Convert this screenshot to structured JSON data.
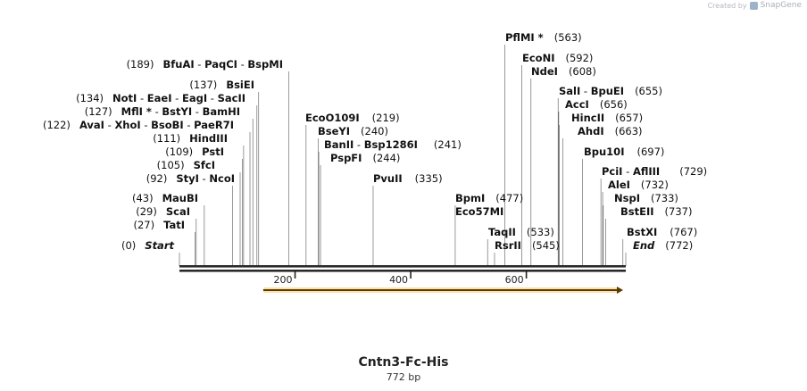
{
  "credit": {
    "prefix": "Created by",
    "brand": "SnapGene"
  },
  "sequence": {
    "name": "Cntn3-Fc-His",
    "length_label": "772 bp",
    "length": 772
  },
  "ruler": {
    "ticks": [
      200,
      400,
      600
    ]
  },
  "feature": {
    "start": 145,
    "end": 772,
    "color": "#f0a818",
    "direction": "forward"
  },
  "sites": [
    {
      "id": 0,
      "names": [
        "Start"
      ],
      "positions": [
        0
      ],
      "label": "(0)",
      "anchor": "left",
      "style": "italic"
    },
    {
      "id": 1,
      "names": [
        "TatI"
      ],
      "positions": [
        27
      ],
      "label": "(27)",
      "anchor": "left"
    },
    {
      "id": 2,
      "names": [
        "ScaI"
      ],
      "positions": [
        29
      ],
      "label": "(29)",
      "anchor": "left"
    },
    {
      "id": 3,
      "names": [
        "MauBI"
      ],
      "positions": [
        43
      ],
      "label": "(43)",
      "anchor": "left"
    },
    {
      "id": 4,
      "names": [
        "StyI",
        "NcoI"
      ],
      "positions": [
        92
      ],
      "label": "(92)",
      "anchor": "left"
    },
    {
      "id": 5,
      "names": [
        "SfcI"
      ],
      "positions": [
        105
      ],
      "label": "(105)",
      "anchor": "left"
    },
    {
      "id": 6,
      "names": [
        "PstI"
      ],
      "positions": [
        109
      ],
      "label": "(109)",
      "anchor": "left"
    },
    {
      "id": 7,
      "names": [
        "HindIII"
      ],
      "positions": [
        111
      ],
      "label": "(111)",
      "anchor": "left"
    },
    {
      "id": 8,
      "names": [
        "AvaI",
        "XhoI",
        "BsoBI",
        "PaeR7I"
      ],
      "positions": [
        122
      ],
      "label": "(122)",
      "anchor": "left"
    },
    {
      "id": 9,
      "names": [
        "MflI *",
        "BstYI",
        "BamHI"
      ],
      "positions": [
        127
      ],
      "label": "(127)",
      "anchor": "left"
    },
    {
      "id": 10,
      "names": [
        "NotI",
        "EaeI",
        "EagI",
        "SacII"
      ],
      "positions": [
        134
      ],
      "label": "(134)",
      "anchor": "left"
    },
    {
      "id": 11,
      "names": [
        "BsiEI"
      ],
      "positions": [
        137
      ],
      "label": "(137)",
      "anchor": "left"
    },
    {
      "id": 12,
      "names": [
        "BfuAI",
        "PaqCI",
        "BspMI"
      ],
      "positions": [
        189
      ],
      "label": "(189)",
      "anchor": "left"
    },
    {
      "id": 13,
      "names": [
        "EcoO109I"
      ],
      "positions": [
        219
      ],
      "label": "(219)",
      "anchor": "right"
    },
    {
      "id": 14,
      "names": [
        "BseYI"
      ],
      "positions": [
        240
      ],
      "label": "(240)",
      "anchor": "right"
    },
    {
      "id": 15,
      "names": [
        "BanII",
        "Bsp1286I"
      ],
      "positions": [
        241
      ],
      "label": "(241)",
      "anchor": "right"
    },
    {
      "id": 16,
      "names": [
        "PspFI"
      ],
      "positions": [
        244
      ],
      "label": "(244)",
      "anchor": "right"
    },
    {
      "id": 17,
      "names": [
        "PvuII"
      ],
      "positions": [
        335
      ],
      "label": "(335)",
      "anchor": "right"
    },
    {
      "id": 18,
      "names": [
        "BpmI"
      ],
      "positions": [
        477
      ],
      "label": "(477)",
      "anchor": "right"
    },
    {
      "id": 19,
      "names": [
        "Eco57MI"
      ],
      "positions": [
        477
      ],
      "label": "",
      "anchor": "right"
    },
    {
      "id": 20,
      "names": [
        "TaqII"
      ],
      "positions": [
        533
      ],
      "label": "(533)",
      "anchor": "right"
    },
    {
      "id": 21,
      "names": [
        "RsrII"
      ],
      "positions": [
        545
      ],
      "label": "(545)",
      "anchor": "right"
    },
    {
      "id": 22,
      "names": [
        "PflMI *"
      ],
      "positions": [
        563
      ],
      "label": "(563)",
      "anchor": "right"
    },
    {
      "id": 23,
      "names": [
        "EcoNI"
      ],
      "positions": [
        592
      ],
      "label": "(592)",
      "anchor": "right"
    },
    {
      "id": 24,
      "names": [
        "NdeI"
      ],
      "positions": [
        608
      ],
      "label": "(608)",
      "anchor": "right"
    },
    {
      "id": 25,
      "names": [
        "SalI",
        "BpuEI"
      ],
      "positions": [
        655
      ],
      "label": "(655)",
      "anchor": "right"
    },
    {
      "id": 26,
      "names": [
        "AccI"
      ],
      "positions": [
        656
      ],
      "label": "(656)",
      "anchor": "right"
    },
    {
      "id": 27,
      "names": [
        "HincII"
      ],
      "positions": [
        657
      ],
      "label": "(657)",
      "anchor": "right"
    },
    {
      "id": 28,
      "names": [
        "AhdI"
      ],
      "positions": [
        663
      ],
      "label": "(663)",
      "anchor": "right"
    },
    {
      "id": 29,
      "names": [
        "Bpu10I"
      ],
      "positions": [
        697
      ],
      "label": "(697)",
      "anchor": "right"
    },
    {
      "id": 30,
      "names": [
        "PciI",
        "AflIII"
      ],
      "positions": [
        729
      ],
      "label": "(729)",
      "anchor": "right"
    },
    {
      "id": 31,
      "names": [
        "AleI"
      ],
      "positions": [
        732
      ],
      "label": "(732)",
      "anchor": "right"
    },
    {
      "id": 32,
      "names": [
        "NspI"
      ],
      "positions": [
        733
      ],
      "label": "(733)",
      "anchor": "right"
    },
    {
      "id": 33,
      "names": [
        "BstEII"
      ],
      "positions": [
        737
      ],
      "label": "(737)",
      "anchor": "right"
    },
    {
      "id": 34,
      "names": [
        "BstXI"
      ],
      "positions": [
        767
      ],
      "label": "(767)",
      "anchor": "right"
    },
    {
      "id": 35,
      "names": [
        "End"
      ],
      "positions": [
        772
      ],
      "label": "(772)",
      "anchor": "right",
      "style": "italic"
    }
  ]
}
